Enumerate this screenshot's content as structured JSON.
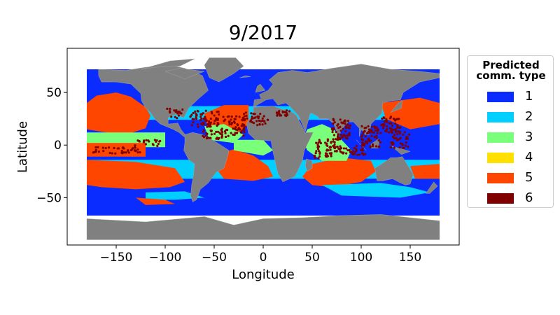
{
  "title": "9/2017",
  "axes": {
    "xlabel": "Longitude",
    "ylabel": "Latitude",
    "xlim": [
      -200,
      200
    ],
    "ylim": [
      -95,
      92
    ],
    "xticks": [
      -150,
      -100,
      -50,
      0,
      50,
      100,
      150
    ],
    "xtick_labels": [
      "−150",
      "−100",
      "−50",
      "0",
      "50",
      "100",
      "150"
    ],
    "yticks": [
      -50,
      0,
      50
    ],
    "ytick_labels": [
      "−50",
      "0",
      "50"
    ]
  },
  "legend": {
    "title": "Predicted comm. type",
    "items": [
      {
        "label": "1",
        "color": "#0a2cff"
      },
      {
        "label": "2",
        "color": "#00cfff"
      },
      {
        "label": "3",
        "color": "#7aff7a"
      },
      {
        "label": "4",
        "color": "#ffe000"
      },
      {
        "label": "5",
        "color": "#ff4600"
      },
      {
        "label": "6",
        "color": "#800000"
      }
    ]
  },
  "map_colors": {
    "land": "#808080",
    "border": "#a9a9a9"
  }
}
